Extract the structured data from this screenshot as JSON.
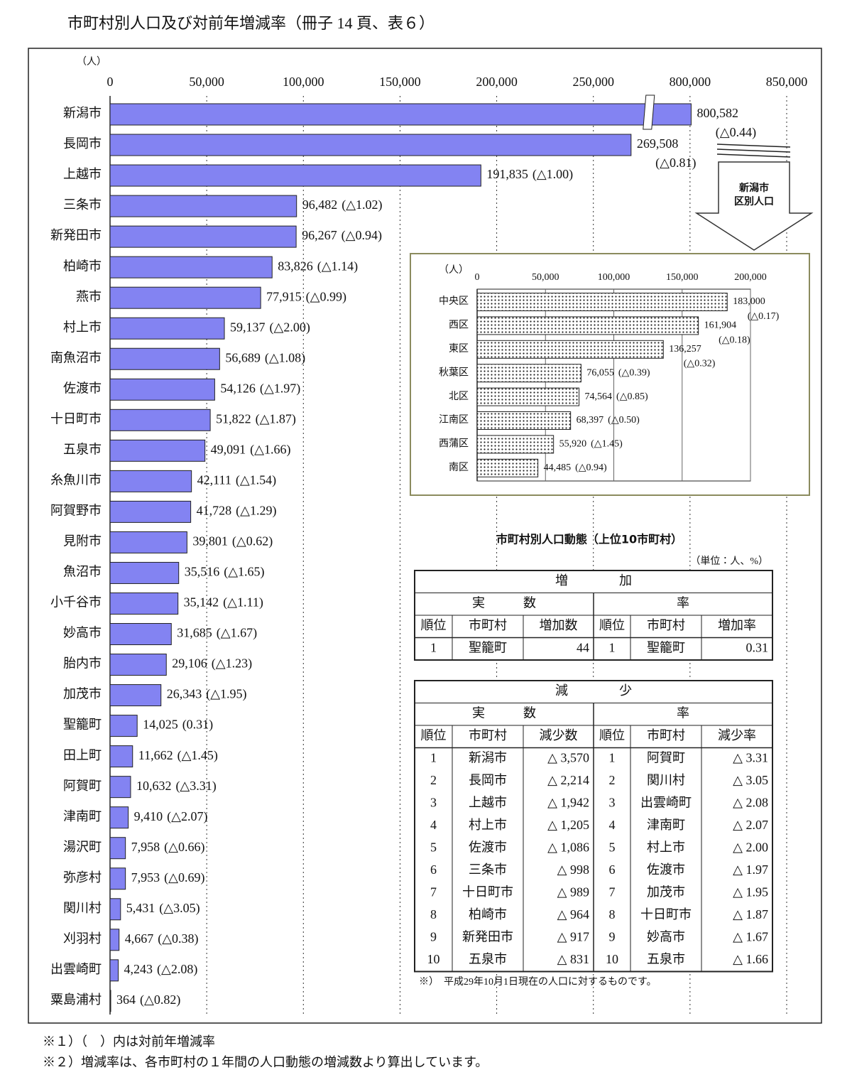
{
  "title": "市町村別人口及び対前年増減率（冊子 14 頁、表６）",
  "chart_data": [
    {
      "type": "bar",
      "orientation": "horizontal",
      "unit_label": "（人）",
      "categories": [
        "新潟市",
        "長岡市",
        "上越市",
        "三条市",
        "新発田市",
        "柏崎市",
        "燕市",
        "村上市",
        "南魚沼市",
        "佐渡市",
        "十日町市",
        "五泉市",
        "糸魚川市",
        "阿賀野市",
        "見附市",
        "魚沼市",
        "小千谷市",
        "妙高市",
        "胎内市",
        "加茂市",
        "聖籠町",
        "田上町",
        "阿賀町",
        "津南町",
        "湯沢町",
        "弥彦村",
        "関川村",
        "刈羽村",
        "出雲崎町",
        "粟島浦村"
      ],
      "values": [
        800582,
        269508,
        191835,
        96482,
        96267,
        83826,
        77915,
        59137,
        56689,
        54126,
        51822,
        49091,
        42111,
        41728,
        39801,
        35516,
        35142,
        31685,
        29106,
        26343,
        14025,
        11662,
        10632,
        9410,
        7958,
        7953,
        5431,
        4667,
        4243,
        364
      ],
      "value_labels": [
        "800,582",
        "269,508",
        "191,835",
        "96,482",
        "96,267",
        "83,826",
        "77,915",
        "59,137",
        "56,689",
        "54,126",
        "51,822",
        "49,091",
        "42,111",
        "41,728",
        "39,801",
        "35,516",
        "35,142",
        "31,685",
        "29,106",
        "26,343",
        "14,025",
        "11,662",
        "10,632",
        "9,410",
        "7,958",
        "7,953",
        "5,431",
        "4,667",
        "4,243",
        "364"
      ],
      "rate_labels": [
        "(△0.44)",
        "(△0.81)",
        "(△1.00)",
        "(△1.02)",
        "(△0.94)",
        "(△1.14)",
        "(△0.99)",
        "(△2.00)",
        "(△1.08)",
        "(△1.97)",
        "(△1.87)",
        "(△1.66)",
        "(△1.54)",
        "(△1.29)",
        "(△0.62)",
        "(△1.65)",
        "(△1.11)",
        "(△1.67)",
        "(△1.23)",
        "(△1.95)",
        "(0.31)",
        "(△1.45)",
        "(△3.31)",
        "(△2.07)",
        "(△0.66)",
        "(△0.69)",
        "(△3.05)",
        "(△0.38)",
        "(△2.08)",
        "(△0.82)"
      ],
      "color": "#8383f2",
      "xlim": [
        0,
        850000
      ],
      "axis_break": true,
      "grid": true,
      "xticks": [
        0,
        {
          "value": 50000,
          "label": "50,000"
        },
        {
          "value": 100000,
          "label": "100,000"
        },
        {
          "value": 150000,
          "label": "150,000"
        },
        {
          "value": 200000,
          "label": "200,000"
        },
        {
          "value": 250000,
          "label": "250,000"
        },
        {
          "value": 800000,
          "label": "800,000"
        },
        {
          "value": 850000,
          "label": "850,000"
        }
      ]
    },
    {
      "type": "bar",
      "orientation": "horizontal",
      "unit_label": "（人）",
      "callout": [
        "新潟市",
        "区別人口"
      ],
      "categories": [
        "中央区",
        "西区",
        "東区",
        "秋葉区",
        "北区",
        "江南区",
        "西蒲区",
        "南区"
      ],
      "values": [
        183000,
        161904,
        136257,
        76055,
        74564,
        68397,
        55920,
        44485
      ],
      "value_labels": [
        "183,000",
        "161,904",
        "136,257",
        "76,055",
        "74,564",
        "68,397",
        "55,920",
        "44,485"
      ],
      "rate_labels": [
        "(△0.17)",
        "(△0.18)",
        "(△0.32)",
        "(△0.39)",
        "(△0.85)",
        "(△0.50)",
        "(△1.45)",
        "(△0.94)"
      ],
      "color": "#bbbbbb",
      "xlim": [
        0,
        200000
      ],
      "grid": true,
      "xticks": [
        0,
        {
          "value": 50000,
          "label": "50,000"
        },
        {
          "value": 100000,
          "label": "100,000"
        },
        {
          "value": 150000,
          "label": "150,000"
        },
        {
          "value": 200000,
          "label": "200,000"
        }
      ]
    }
  ],
  "ranking": {
    "title": "市町村別人口動態（上位10市町村）",
    "unit": "（単位：人、%）",
    "tables": [
      {
        "heading": "増　　　　加",
        "groups": [
          "実　　　数",
          "率"
        ],
        "columns": [
          "順位",
          "市町村",
          "増加数",
          "順位",
          "市町村",
          "増加率"
        ],
        "rows": [
          [
            "1",
            "聖籠町",
            "44",
            "1",
            "聖籠町",
            "0.31"
          ]
        ]
      },
      {
        "heading": "減　　　　少",
        "groups": [
          "実　　　数",
          "率"
        ],
        "columns": [
          "順位",
          "市町村",
          "減少数",
          "順位",
          "市町村",
          "減少率"
        ],
        "rows": [
          [
            "1",
            "新潟市",
            "△ 3,570",
            "1",
            "阿賀町",
            "△ 3.31"
          ],
          [
            "2",
            "長岡市",
            "△ 2,214",
            "2",
            "関川村",
            "△ 3.05"
          ],
          [
            "3",
            "上越市",
            "△ 1,942",
            "3",
            "出雲崎町",
            "△ 2.08"
          ],
          [
            "4",
            "村上市",
            "△ 1,205",
            "4",
            "津南町",
            "△ 2.07"
          ],
          [
            "5",
            "佐渡市",
            "△ 1,086",
            "5",
            "村上市",
            "△ 2.00"
          ],
          [
            "6",
            "三条市",
            "△ 998",
            "6",
            "佐渡市",
            "△ 1.97"
          ],
          [
            "7",
            "十日町市",
            "△ 989",
            "7",
            "加茂市",
            "△ 1.95"
          ],
          [
            "8",
            "柏崎市",
            "△ 964",
            "8",
            "十日町市",
            "△ 1.87"
          ],
          [
            "9",
            "新発田市",
            "△ 917",
            "9",
            "妙高市",
            "△ 1.67"
          ],
          [
            "10",
            "五泉市",
            "△ 831",
            "10",
            "五泉市",
            "△ 1.66"
          ]
        ]
      }
    ],
    "note": "※）　平成29年10月1日現在の人口に対するものです。"
  },
  "footnotes": [
    "※１）（　）内は対前年増減率",
    "※２）増減率は、各市町村の１年間の人口動態の増減数より算出しています。"
  ]
}
